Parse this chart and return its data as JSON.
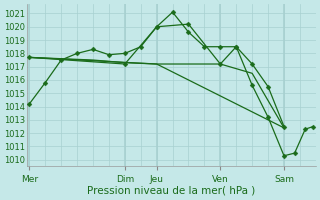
{
  "bg_color": "#c5e8e8",
  "grid_color": "#a8d0d0",
  "line_color": "#1a6b1a",
  "xlabel": "Pression niveau de la mer( hPa )",
  "ylim": [
    1009.5,
    1021.7
  ],
  "yticks": [
    1010,
    1011,
    1012,
    1013,
    1014,
    1015,
    1016,
    1017,
    1018,
    1019,
    1020,
    1021
  ],
  "day_labels": [
    "Mer",
    "Dim",
    "Jeu",
    "Ven",
    "Sam"
  ],
  "day_positions": [
    0,
    36,
    48,
    72,
    96
  ],
  "xlim": [
    -1,
    108
  ],
  "line1_x": [
    0,
    6,
    12,
    18,
    24,
    30,
    36,
    42,
    48,
    54,
    60,
    66,
    72,
    78,
    84,
    90,
    96
  ],
  "line1_y": [
    1014.2,
    1015.8,
    1017.5,
    1018.0,
    1018.3,
    1017.9,
    1018.0,
    1018.5,
    1020.0,
    1021.1,
    1019.6,
    1018.5,
    1018.5,
    1018.5,
    1017.2,
    1015.5,
    1012.5
  ],
  "line2_x": [
    0,
    12,
    24,
    36,
    48,
    60,
    72,
    84,
    96
  ],
  "line2_y": [
    1017.7,
    1017.6,
    1017.5,
    1017.3,
    1017.2,
    1017.2,
    1017.2,
    1016.5,
    1012.4
  ],
  "line3_x": [
    0,
    48,
    96
  ],
  "line3_y": [
    1017.7,
    1017.2,
    1012.4
  ],
  "line4_x": [
    0,
    36,
    48,
    60,
    72,
    78,
    84,
    90,
    96,
    100,
    104,
    107
  ],
  "line4_y": [
    1017.7,
    1017.2,
    1020.0,
    1020.2,
    1017.2,
    1018.5,
    1015.6,
    1013.2,
    1010.3,
    1010.5,
    1012.3,
    1012.5
  ],
  "minor_x_step": 6,
  "xlabel_fontsize": 7.5,
  "tick_fontsize": 6.0,
  "label_fontsize": 6.5
}
